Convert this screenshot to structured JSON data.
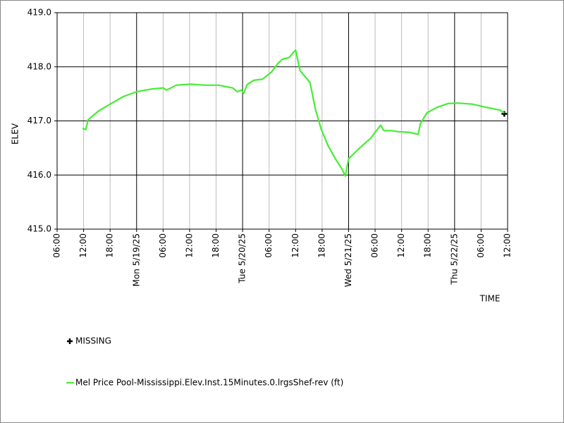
{
  "chart_data": {
    "type": "line",
    "xlabel": "TIME",
    "ylabel": "ELEV",
    "xlim": [
      "2025-05-18T06:00",
      "2025-05-22T12:00"
    ],
    "xticks": [
      {
        "value": "2025-05-18T06:00",
        "label": "06:00"
      },
      {
        "value": "2025-05-18T12:00",
        "label": "12:00"
      },
      {
        "value": "2025-05-18T18:00",
        "label": "18:00"
      },
      {
        "value": "2025-05-19T00:00",
        "label": "Mon 5/19/25"
      },
      {
        "value": "2025-05-19T06:00",
        "label": "06:00"
      },
      {
        "value": "2025-05-19T12:00",
        "label": "12:00"
      },
      {
        "value": "2025-05-19T18:00",
        "label": "18:00"
      },
      {
        "value": "2025-05-20T00:00",
        "label": "Tue 5/20/25"
      },
      {
        "value": "2025-05-20T06:00",
        "label": "06:00"
      },
      {
        "value": "2025-05-20T12:00",
        "label": "12:00"
      },
      {
        "value": "2025-05-20T18:00",
        "label": "18:00"
      },
      {
        "value": "2025-05-21T00:00",
        "label": "Wed 5/21/25"
      },
      {
        "value": "2025-05-21T06:00",
        "label": "06:00"
      },
      {
        "value": "2025-05-21T12:00",
        "label": "12:00"
      },
      {
        "value": "2025-05-21T18:00",
        "label": "18:00"
      },
      {
        "value": "2025-05-22T00:00",
        "label": "Thu 5/22/25"
      },
      {
        "value": "2025-05-22T06:00",
        "label": "06:00"
      },
      {
        "value": "2025-05-22T12:00",
        "label": "12:00"
      }
    ],
    "ylim": [
      415,
      419
    ],
    "yticks": [
      {
        "value": 415,
        "label": "415.0"
      },
      {
        "value": 416,
        "label": "416.0"
      },
      {
        "value": 417,
        "label": "417.0"
      },
      {
        "value": 418,
        "label": "418.0"
      },
      {
        "value": 419,
        "label": "419.0"
      }
    ],
    "grid": true,
    "series": [
      {
        "name": "MISSING",
        "color": "#000000",
        "marker": "plus",
        "x": [
          "2025-05-22T11:15"
        ],
        "values": [
          417.13
        ]
      },
      {
        "name": "Mel Price Pool-Mississippi.Elev.Inst.15Minutes.0.lrgsShef-rev (ft)",
        "color": "#44ee33",
        "marker": "line",
        "x": [
          "2025-05-18T11:45",
          "2025-05-18T12:30",
          "2025-05-18T13:00",
          "2025-05-18T15:30",
          "2025-05-18T18:00",
          "2025-05-18T21:00",
          "2025-05-19T00:00",
          "2025-05-19T03:30",
          "2025-05-19T06:00",
          "2025-05-19T06:45",
          "2025-05-19T09:00",
          "2025-05-19T12:15",
          "2025-05-19T15:15",
          "2025-05-19T18:30",
          "2025-05-19T21:45",
          "2025-05-19T22:45",
          "2025-05-19T23:45",
          "2025-05-20T00:15",
          "2025-05-20T01:00",
          "2025-05-20T02:30",
          "2025-05-20T04:30",
          "2025-05-20T06:30",
          "2025-05-20T08:00",
          "2025-05-20T09:00",
          "2025-05-20T10:30",
          "2025-05-20T12:00",
          "2025-05-20T13:00",
          "2025-05-20T15:15",
          "2025-05-20T16:30",
          "2025-05-20T17:45",
          "2025-05-20T19:15",
          "2025-05-20T21:00",
          "2025-05-20T22:30",
          "2025-05-20T23:15",
          "2025-05-21T00:00",
          "2025-05-21T02:30",
          "2025-05-21T05:00",
          "2025-05-21T06:30",
          "2025-05-21T07:15",
          "2025-05-21T08:00",
          "2025-05-21T09:45",
          "2025-05-21T11:15",
          "2025-05-21T13:45",
          "2025-05-21T15:45",
          "2025-05-21T16:15",
          "2025-05-21T17:45",
          "2025-05-21T20:00",
          "2025-05-21T22:30",
          "2025-05-22T00:45",
          "2025-05-22T04:00",
          "2025-05-22T07:15",
          "2025-05-22T10:15",
          "2025-05-22T11:15"
        ],
        "values": [
          416.86,
          416.84,
          417.02,
          417.19,
          417.31,
          417.45,
          417.54,
          417.59,
          417.61,
          417.57,
          417.66,
          417.68,
          417.66,
          417.66,
          417.61,
          417.54,
          417.57,
          417.51,
          417.67,
          417.75,
          417.77,
          417.9,
          418.06,
          418.14,
          418.17,
          418.31,
          417.93,
          417.71,
          417.21,
          416.86,
          416.56,
          416.3,
          416.11,
          415.98,
          416.3,
          416.5,
          416.68,
          416.84,
          416.92,
          416.82,
          416.82,
          416.8,
          416.79,
          416.75,
          416.95,
          417.15,
          417.25,
          417.32,
          417.33,
          417.31,
          417.25,
          417.2,
          417.15
        ]
      }
    ]
  }
}
